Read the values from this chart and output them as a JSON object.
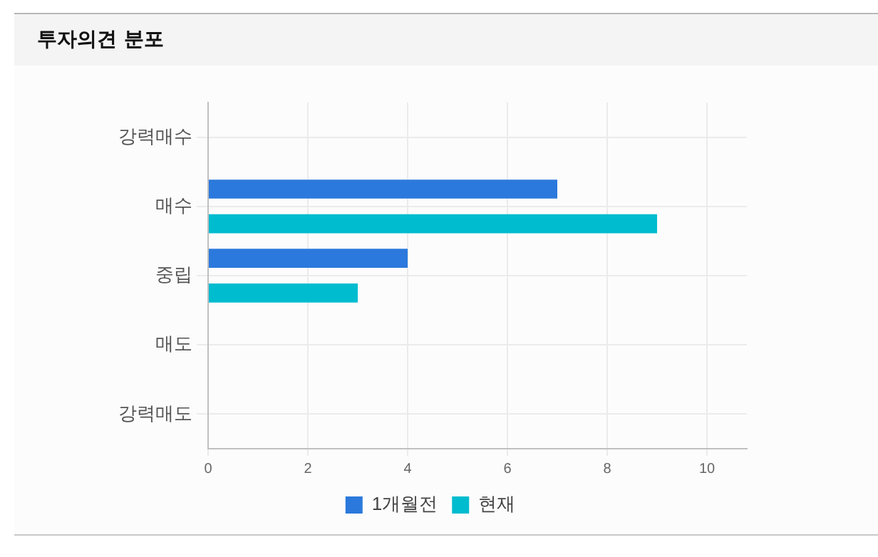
{
  "chart_data": {
    "type": "bar",
    "title": "투자의견 분포",
    "orientation": "horizontal",
    "categories": [
      "강력매수",
      "매수",
      "중립",
      "매도",
      "강력매도"
    ],
    "series": [
      {
        "name": "1개월전",
        "color": "#2b79dc",
        "values": [
          0,
          7,
          4,
          0,
          0
        ]
      },
      {
        "name": "현재",
        "color": "#00bccf",
        "values": [
          0,
          9,
          3,
          0,
          0
        ]
      }
    ],
    "xlim": [
      0,
      10.8
    ],
    "xticks": [
      0,
      2,
      4,
      6,
      8,
      10
    ],
    "grid": true,
    "legend": "bottom"
  }
}
